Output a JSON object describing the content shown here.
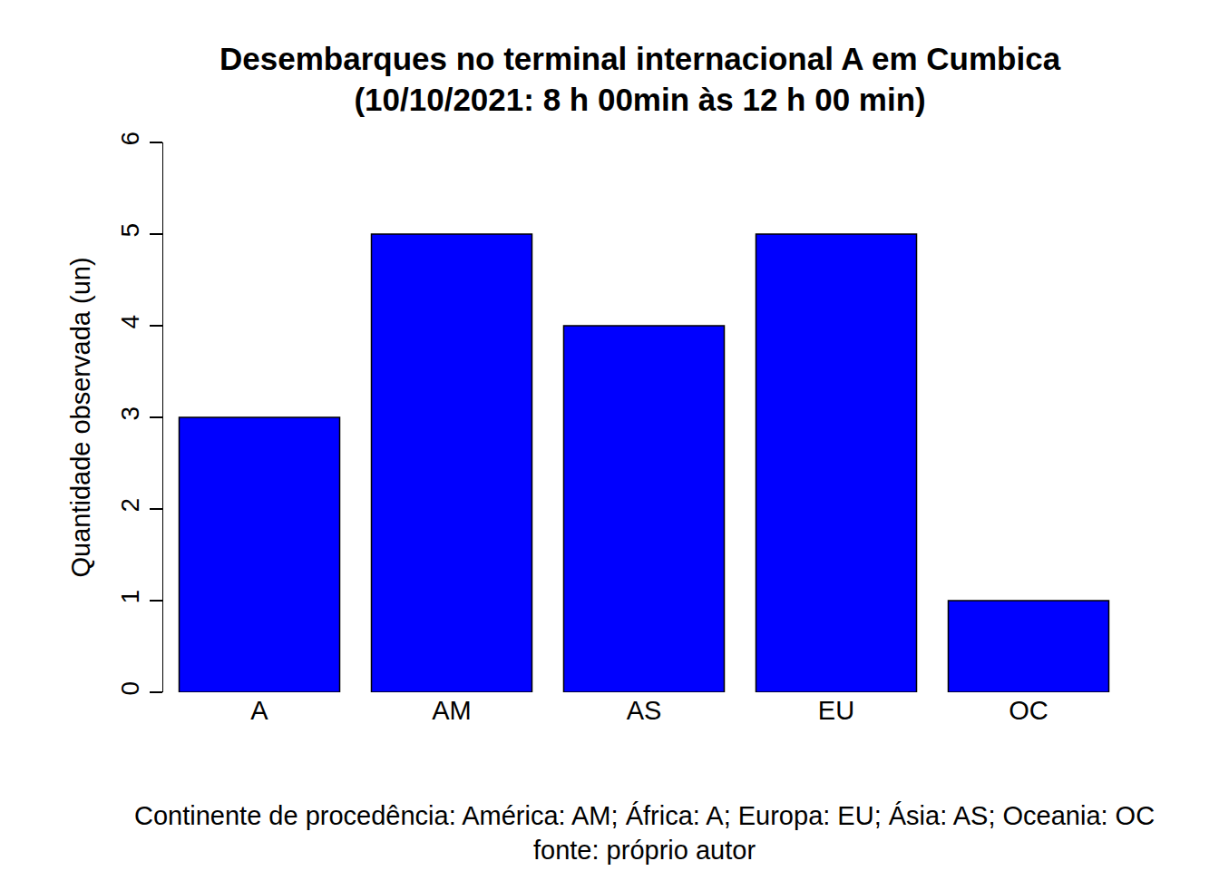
{
  "chart_data": {
    "type": "bar",
    "title": "Desembarques no terminal internacional A em Cumbica",
    "subtitle": "(10/10/2021: 8 h 00min às 12 h 00 min)",
    "x_label": "Continente de procedência: América: AM; África: A; Europa: EU; Ásia: AS; Oceania: OC",
    "y_label": "Quantidade observada (un)",
    "annotations": [
      "fonte: próprio autor"
    ],
    "categories": [
      "A",
      "AM",
      "AS",
      "EU",
      "OC"
    ],
    "values": [
      3,
      5,
      4,
      5,
      1
    ],
    "color": "#0000ff",
    "ylim": [
      0,
      6
    ],
    "yticks": [
      0,
      1,
      2,
      3,
      4,
      5,
      6
    ],
    "grid": false
  }
}
